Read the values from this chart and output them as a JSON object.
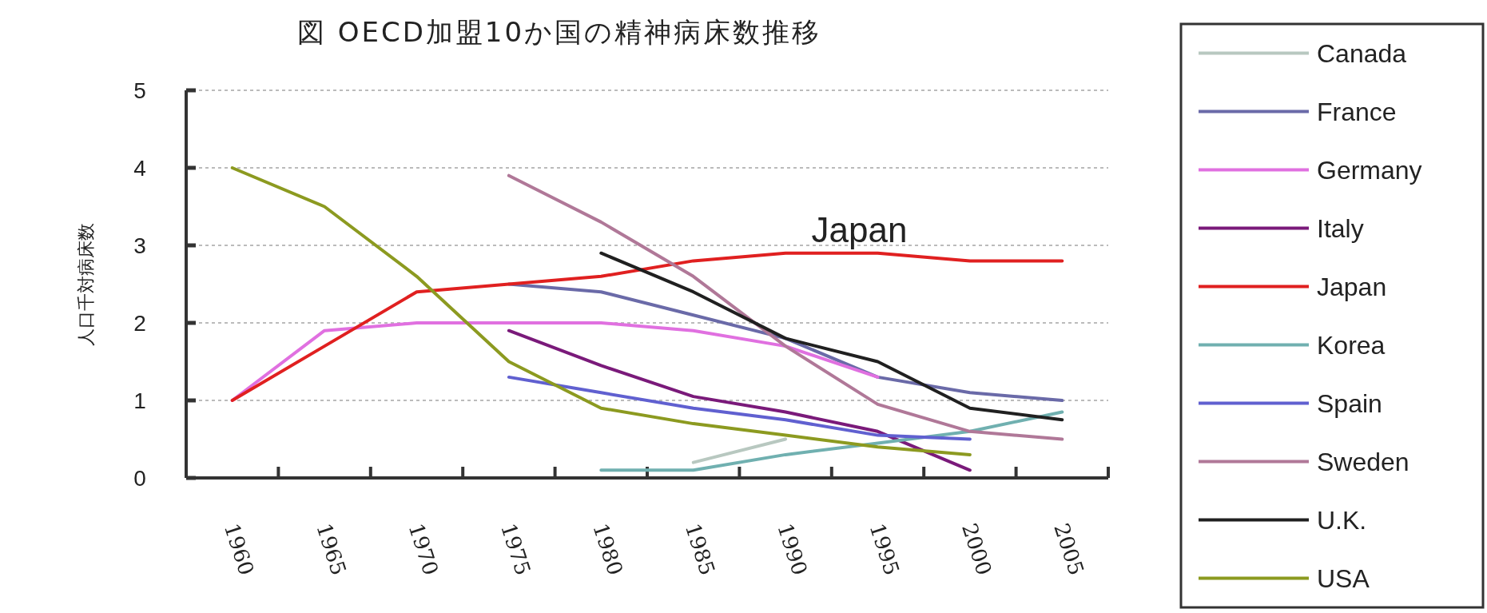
{
  "chart_data": {
    "type": "line",
    "title": "図 OECD加盟10か国の精神病床数推移",
    "ylabel": "人口千対病床数",
    "categories": [
      "1960",
      "1965",
      "1970",
      "1975",
      "1980",
      "1985",
      "1990",
      "1995",
      "2000",
      "2005"
    ],
    "series": [
      {
        "name": "Canada",
        "color": "#b8c8c0",
        "values": [
          null,
          null,
          null,
          null,
          null,
          0.2,
          0.5,
          null,
          null,
          null
        ]
      },
      {
        "name": "France",
        "color": "#6a6aa8",
        "values": [
          null,
          null,
          null,
          2.5,
          2.4,
          2.1,
          1.8,
          1.3,
          1.1,
          1.0
        ]
      },
      {
        "name": "Germany",
        "color": "#e070e0",
        "values": [
          1.0,
          1.9,
          2.0,
          2.0,
          2.0,
          1.9,
          1.7,
          1.3,
          null,
          null
        ]
      },
      {
        "name": "Italy",
        "color": "#7a1a7a",
        "values": [
          null,
          null,
          null,
          1.9,
          1.45,
          1.05,
          0.85,
          0.6,
          0.1,
          null
        ]
      },
      {
        "name": "Japan",
        "color": "#e02020",
        "values": [
          1.0,
          1.7,
          2.4,
          2.5,
          2.6,
          2.8,
          2.9,
          2.9,
          2.8,
          2.8
        ]
      },
      {
        "name": "Korea",
        "color": "#70b0b0",
        "values": [
          null,
          null,
          null,
          null,
          0.1,
          0.1,
          0.3,
          0.45,
          0.6,
          0.85
        ]
      },
      {
        "name": "Spain",
        "color": "#6060d0",
        "values": [
          null,
          null,
          null,
          1.3,
          1.1,
          0.9,
          0.75,
          0.55,
          0.5,
          null
        ]
      },
      {
        "name": "Sweden",
        "color": "#b07898",
        "values": [
          null,
          null,
          null,
          3.9,
          3.3,
          2.6,
          1.7,
          0.95,
          0.6,
          0.5
        ]
      },
      {
        "name": "U.K.",
        "color": "#202020",
        "values": [
          null,
          null,
          null,
          null,
          2.9,
          2.4,
          1.8,
          1.5,
          0.9,
          0.75
        ]
      },
      {
        "name": "USA",
        "color": "#8c9a20",
        "values": [
          4.0,
          3.5,
          2.6,
          1.5,
          0.9,
          0.7,
          0.55,
          0.4,
          0.3,
          null
        ]
      }
    ],
    "ylim": [
      0,
      5
    ],
    "yticks": [
      0,
      1,
      2,
      3,
      4,
      5
    ],
    "grid": "y",
    "legend": "right",
    "marker": "none",
    "annotations": [
      "Japan"
    ]
  }
}
